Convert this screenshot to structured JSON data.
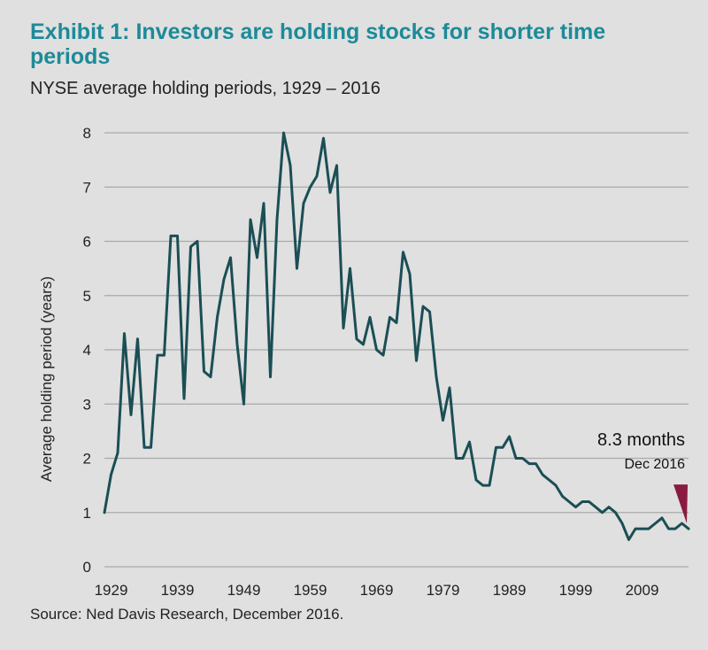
{
  "header": {
    "title": "Exhibit 1: Investors are holding stocks for shorter time periods",
    "subtitle": "NYSE average holding periods, 1929 – 2016"
  },
  "footer": {
    "source": "Source: Ned Davis Research, December 2016."
  },
  "colors": {
    "line": "#1b4e55",
    "title": "#1d8a99",
    "marker": "#8a1b3f",
    "grid": "#a9a9a9",
    "background": "#dfe0df"
  },
  "chart_data": {
    "type": "line",
    "title": "Exhibit 1: Investors are holding stocks for shorter time periods",
    "subtitle": "NYSE average holding periods, 1929 – 2016",
    "xlabel": "",
    "ylabel": "Average holding period (years)",
    "xlim": [
      1928,
      2016
    ],
    "ylim": [
      0,
      8
    ],
    "x_tick_labels": [
      "1929",
      "1939",
      "1949",
      "1959",
      "1969",
      "1979",
      "1989",
      "1999",
      "2009"
    ],
    "y_tick_labels": [
      "0",
      "1",
      "2",
      "3",
      "4",
      "5",
      "6",
      "7",
      "8"
    ],
    "grid": true,
    "series": [
      {
        "x": [
          1928,
          1929,
          1930,
          1931,
          1932,
          1933,
          1934,
          1935,
          1936,
          1937,
          1938,
          1939,
          1940,
          1941,
          1942,
          1943,
          1944,
          1945,
          1946,
          1947,
          1948,
          1949,
          1950,
          1951,
          1952,
          1953,
          1954,
          1955,
          1956,
          1957,
          1958,
          1959,
          1960,
          1961,
          1962,
          1963,
          1964,
          1965,
          1966,
          1967,
          1968,
          1969,
          1970,
          1971,
          1972,
          1973,
          1974,
          1975,
          1976,
          1977,
          1978,
          1979,
          1980,
          1981,
          1982,
          1983,
          1984,
          1985,
          1986,
          1987,
          1988,
          1989,
          1990,
          1991,
          1992,
          1993,
          1994,
          1995,
          1996,
          1997,
          1998,
          1999,
          2000,
          2001,
          2002,
          2003,
          2004,
          2005,
          2006,
          2007,
          2008,
          2009,
          2010,
          2011,
          2012,
          2013,
          2014,
          2015,
          2016
        ],
        "values": [
          1.0,
          1.7,
          2.1,
          4.3,
          2.8,
          4.2,
          2.2,
          2.2,
          3.9,
          3.9,
          6.1,
          6.1,
          3.1,
          5.9,
          6.0,
          3.6,
          3.5,
          4.6,
          5.3,
          5.7,
          4.1,
          3.0,
          6.4,
          5.7,
          6.7,
          3.5,
          6.4,
          8.0,
          7.4,
          5.5,
          6.7,
          7.0,
          7.2,
          7.9,
          6.9,
          7.4,
          4.4,
          5.5,
          4.2,
          4.1,
          4.6,
          4.0,
          3.9,
          4.6,
          4.5,
          5.8,
          5.4,
          3.8,
          4.8,
          4.7,
          3.5,
          2.7,
          3.3,
          2.0,
          2.0,
          2.3,
          1.6,
          1.5,
          1.5,
          2.2,
          2.2,
          2.4,
          2.0,
          2.0,
          1.9,
          1.9,
          1.7,
          1.6,
          1.5,
          1.3,
          1.2,
          1.1,
          1.2,
          1.2,
          1.1,
          1.0,
          1.1,
          1.0,
          0.8,
          0.5,
          0.7,
          0.7,
          0.7,
          0.8,
          0.9,
          0.7,
          0.7,
          0.8,
          0.7
        ]
      }
    ],
    "annotations": [
      {
        "text": "8.3 months",
        "subtext": "Dec 2016",
        "x": 2016,
        "y": 0.7
      }
    ]
  }
}
